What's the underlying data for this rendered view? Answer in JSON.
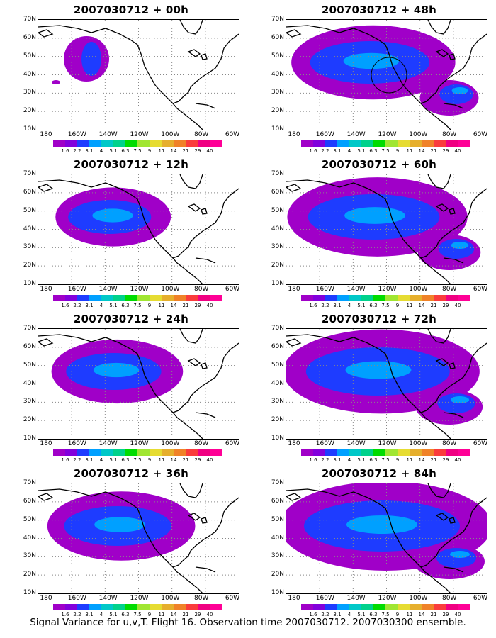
{
  "panels": [
    {
      "title": "2007030712 + 00h",
      "intensity": 0,
      "circle": false
    },
    {
      "title": "2007030712 + 48h",
      "intensity": 4,
      "circle": true
    },
    {
      "title": "2007030712 + 12h",
      "intensity": 1,
      "circle": false
    },
    {
      "title": "2007030712 + 60h",
      "intensity": 5,
      "circle": false
    },
    {
      "title": "2007030712 + 24h",
      "intensity": 2,
      "circle": false
    },
    {
      "title": "2007030712 + 72h",
      "intensity": 6,
      "circle": false
    },
    {
      "title": "2007030712 + 36h",
      "intensity": 3,
      "circle": false
    },
    {
      "title": "2007030712 + 84h",
      "intensity": 7,
      "circle": false
    }
  ],
  "lat_labels": [
    "70N",
    "60N",
    "50N",
    "40N",
    "30N",
    "20N",
    "10N"
  ],
  "lon_labels": [
    "180",
    "160W",
    "140W",
    "120W",
    "100W",
    "80W",
    "60W"
  ],
  "colorbar": {
    "labels": [
      "1.6",
      "2.2",
      "3.1",
      "4",
      "5.1",
      "6.3",
      "7.5",
      "9",
      "11",
      "14",
      "21",
      "29",
      "40"
    ],
    "colors": [
      "#a000c8",
      "#8200dc",
      "#1e3cff",
      "#00a0ff",
      "#00c8c8",
      "#00d28c",
      "#00dc00",
      "#a0e632",
      "#e6dc32",
      "#e6af2d",
      "#f08228",
      "#fa3c3c",
      "#f00082",
      "#ff0096"
    ]
  },
  "footer": "Signal Variance for u,v,T. Flight 16. Observation time 2007030712. 2007030300 ensemble."
}
